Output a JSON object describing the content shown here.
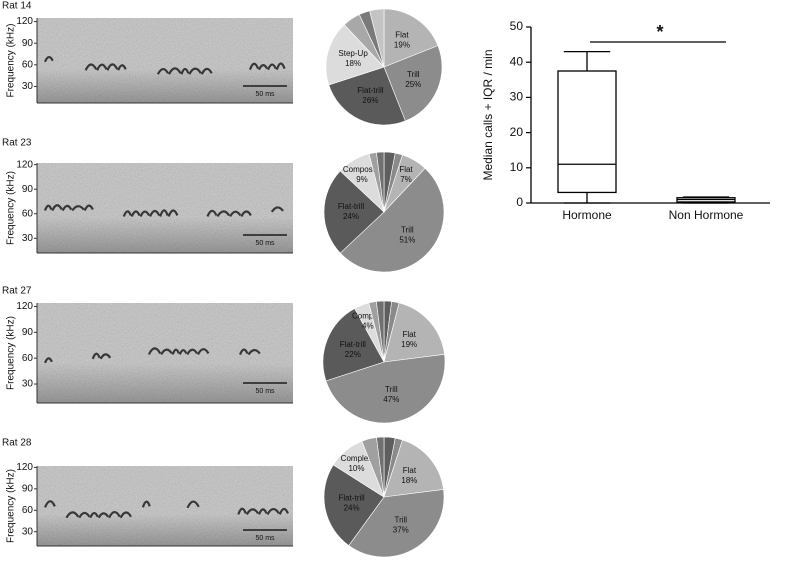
{
  "chart_data": [
    {
      "type": "box",
      "ylabel": "Median calls + IQR / min",
      "categories": [
        "Hormone",
        "Non Hormone"
      ],
      "min": [
        0,
        0
      ],
      "q1": [
        3,
        0.3
      ],
      "median": [
        11,
        1
      ],
      "q3": [
        37.5,
        1.5
      ],
      "max": [
        43,
        1.7
      ],
      "ylim": [
        0,
        50
      ],
      "yticks": [
        0,
        10,
        20,
        30,
        40,
        50
      ],
      "color": "#ffffff",
      "annotation": "*"
    },
    {
      "type": "spectrogram",
      "title": "Rat 14",
      "ylabel": "Frequency (kHz)",
      "ylim": [
        7,
        125
      ],
      "yticks": [
        30,
        60,
        90,
        120
      ],
      "scale_label": "50 ms"
    },
    {
      "type": "pie",
      "categories": [
        "Flat",
        "Trill",
        "Flat-trill",
        "Step-Up",
        null,
        null,
        null
      ],
      "values": [
        19,
        25,
        26,
        18,
        5,
        3,
        4
      ],
      "value_labels": [
        "19%",
        "25%",
        "26%",
        "18%",
        null,
        null,
        null
      ],
      "colors": [
        "#b4b4b4",
        "#8c8c8c",
        "#5a5a5a",
        "#dcdcdc",
        "#a8a8a8",
        "#7a7a7a",
        "#c4c4c4"
      ]
    },
    {
      "type": "spectrogram",
      "title": "Rat 23",
      "ylabel": "Frequency (kHz)",
      "ylim": [
        12,
        122
      ],
      "yticks": [
        30,
        60,
        90,
        120
      ],
      "scale_label": "50 ms"
    },
    {
      "type": "pie",
      "categories": [
        null,
        null,
        "Flat",
        "Trill",
        "Flat-trill",
        "Composite",
        null,
        null
      ],
      "values": [
        3,
        2,
        7,
        51,
        24,
        9,
        2,
        2
      ],
      "value_labels": [
        null,
        null,
        "7%",
        "51%",
        "24%",
        "9%",
        null,
        null
      ],
      "colors": [
        "#5e5e5e",
        "#8a8a8a",
        "#b4b4b4",
        "#8c8c8c",
        "#5a5a5a",
        "#dcdcdc",
        "#a0a0a0",
        "#707070"
      ]
    },
    {
      "type": "spectrogram",
      "title": "Rat 27",
      "ylabel": "Frequency (kHz)",
      "ylim": [
        8,
        124
      ],
      "yticks": [
        30,
        60,
        90,
        120
      ],
      "scale_label": "50 ms"
    },
    {
      "type": "pie",
      "categories": [
        null,
        null,
        "Flat",
        "Trill",
        "Flat-trill",
        "Complex",
        null,
        null
      ],
      "values": [
        2,
        2,
        19,
        47,
        22,
        4,
        2,
        2
      ],
      "value_labels": [
        null,
        null,
        "19%",
        "47%",
        "22%",
        "4%",
        null,
        null
      ],
      "colors": [
        "#5e5e5e",
        "#8a8a8a",
        "#b4b4b4",
        "#8c8c8c",
        "#5a5a5a",
        "#dcdcdc",
        "#a0a0a0",
        "#707070"
      ]
    },
    {
      "type": "spectrogram",
      "title": "Rat 28",
      "ylabel": "Frequency (kHz)",
      "ylim": [
        10,
        122
      ],
      "yticks": [
        30,
        60,
        90,
        120
      ],
      "scale_label": "50 ms"
    },
    {
      "type": "pie",
      "categories": [
        null,
        null,
        "Flat",
        "Trill",
        "Flat-trill",
        "Complex",
        null,
        null
      ],
      "values": [
        3,
        2,
        18,
        37,
        24,
        10,
        4,
        2
      ],
      "value_labels": [
        null,
        null,
        "18%",
        "37%",
        "24%",
        "10%",
        null,
        null
      ],
      "colors": [
        "#5e5e5e",
        "#8a8a8a",
        "#b4b4b4",
        "#8c8c8c",
        "#5a5a5a",
        "#dcdcdc",
        "#a0a0a0",
        "#707070"
      ]
    }
  ]
}
